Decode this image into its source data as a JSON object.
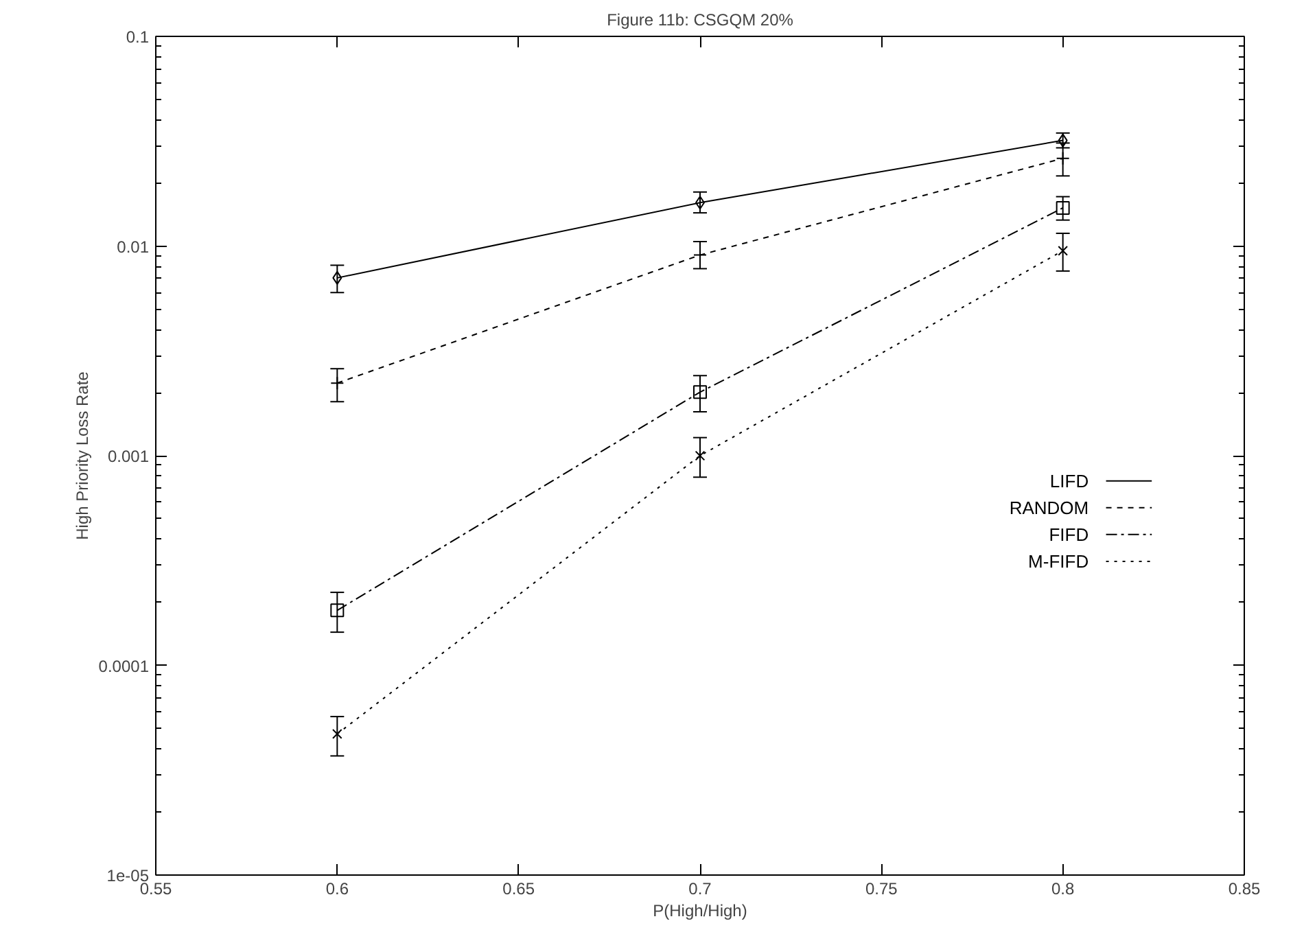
{
  "chart_data": {
    "type": "line",
    "title": "Figure 11b: CSGQM 20%",
    "xlabel": "P(High/High)",
    "ylabel": "High Priority Loss Rate",
    "x": [
      0.6,
      0.7,
      0.8
    ],
    "series": [
      {
        "name": "LIFD",
        "color": "#000000",
        "marker": "diamond",
        "line_style": "solid",
        "values": [
          0.00705,
          0.0161,
          0.0319
        ],
        "errors": [
          [
            0.006,
            0.0081
          ],
          [
            0.0144,
            0.0181
          ],
          [
            0.0294,
            0.0346
          ]
        ]
      },
      {
        "name": "RANDOM",
        "color": "#000000",
        "marker": "plus",
        "line_style": "dashed",
        "values": [
          0.00222,
          0.00906,
          0.0262
        ],
        "errors": [
          [
            0.00181,
            0.0026
          ],
          [
            0.0078,
            0.0105
          ],
          [
            0.0216,
            0.031
          ]
        ]
      },
      {
        "name": "FIFD",
        "color": "#000000",
        "marker": "square",
        "line_style": "dashdot",
        "values": [
          0.000183,
          0.00201,
          0.0152
        ],
        "errors": [
          [
            0.000144,
            0.000223
          ],
          [
            0.00162,
            0.00241
          ],
          [
            0.0133,
            0.0172
          ]
        ]
      },
      {
        "name": "M-FIFD",
        "color": "#000000",
        "marker": "cross",
        "line_style": "dotted",
        "values": [
          4.71e-05,
          0.001,
          0.0095
        ],
        "errors": [
          [
            3.7e-05,
            5.7e-05
          ],
          [
            0.00079,
            0.00122
          ],
          [
            0.0076,
            0.0115
          ]
        ]
      }
    ],
    "log": "y",
    "xlim": [
      0.55,
      0.85
    ],
    "ylim": [
      1e-05,
      0.1
    ],
    "xticks": [
      0.55,
      0.6,
      0.65,
      0.7,
      0.75,
      0.8,
      0.85
    ],
    "yticks": [
      {
        "value": 1e-05,
        "label": "1e-05"
      },
      {
        "value": 0.0001,
        "label": "0.0001"
      },
      {
        "value": 0.001,
        "label": "0.001"
      },
      {
        "value": 0.01,
        "label": "0.01"
      },
      {
        "value": 0.1,
        "label": "0.1"
      }
    ],
    "grid": false,
    "legend": "right"
  }
}
